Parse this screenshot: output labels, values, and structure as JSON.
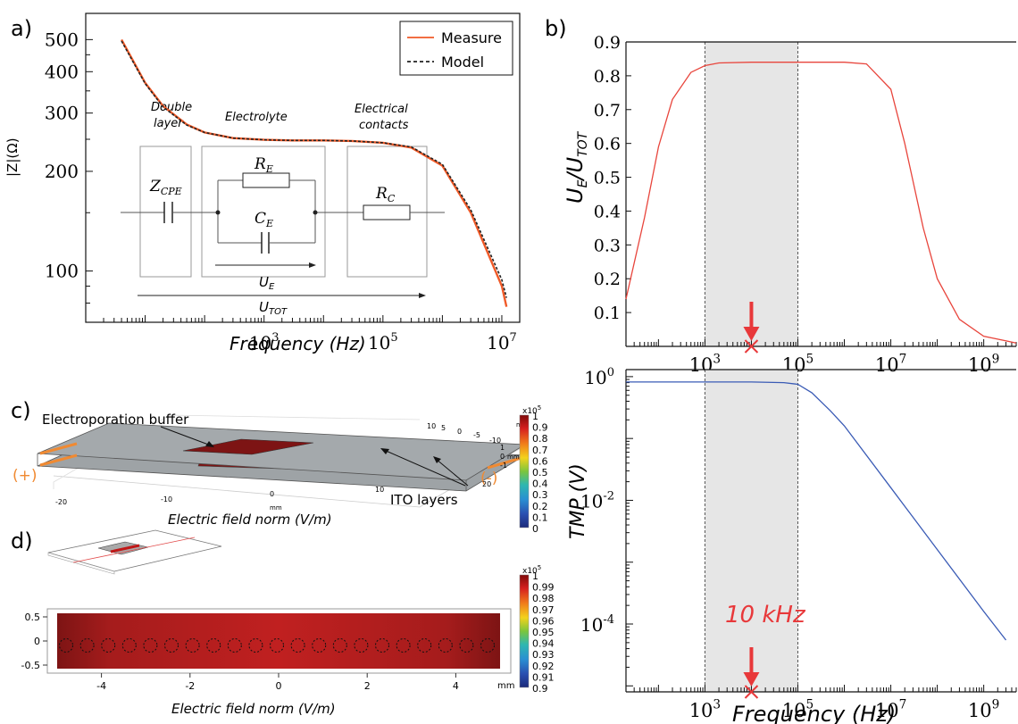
{
  "panels": {
    "a": "a)",
    "b": "b)",
    "c": "c)",
    "d": "d)"
  },
  "panel_a": {
    "legend": [
      "Measure",
      "Model"
    ],
    "region_labels": {
      "double_layer": [
        "Double",
        "layer"
      ],
      "electrolyte": "Electrolyte",
      "contacts": [
        "Electrical",
        "contacts"
      ]
    },
    "circuit": {
      "zcpe": "Z",
      "zcpe_sub": "CPE",
      "re": "R",
      "re_sub": "E",
      "ce": "C",
      "ce_sub": "E",
      "rc": "R",
      "rc_sub": "C",
      "ue": "U",
      "ue_sub": "E",
      "utot": "U",
      "utot_sub": "TOT"
    }
  },
  "panel_b": {
    "marker_label": "10 kHz"
  },
  "panel_c": {
    "label_buffer": "Electroporation buffer",
    "label_ito": "ITO layers",
    "plus": "(+)",
    "minus": "(-)",
    "xlabel": "Electric field norm (V/m)",
    "axis_ticks": [
      "-20",
      "-10",
      "0",
      "10",
      "20"
    ],
    "depth_ticks": [
      "10",
      "5",
      "0",
      "-5",
      "-10"
    ],
    "unit_mm": "mm",
    "colorbar": {
      "exp": "x10",
      "exp_sup": "5",
      "ticks": [
        "1",
        "0.9",
        "0.8",
        "0.7",
        "0.6",
        "0.5",
        "0.4",
        "0.3",
        "0.2",
        "0.1",
        "0"
      ]
    }
  },
  "panel_d": {
    "xlabel": "Electric field norm (V/m)",
    "xticks": [
      "-4",
      "-2",
      "0",
      "2",
      "4"
    ],
    "yticks": [
      "0.5",
      "0",
      "-0.5"
    ],
    "unit_mm": "mm",
    "colorbar": {
      "exp": "x10",
      "exp_sup": "5",
      "ticks": [
        "1",
        "0.99",
        "0.98",
        "0.97",
        "0.96",
        "0.95",
        "0.94",
        "0.93",
        "0.92",
        "0.91",
        "0.9"
      ]
    }
  },
  "chart_data": [
    {
      "type": "line",
      "panel": "a",
      "xlabel": "Frequency (Hz)",
      "ylabel": "|Z|(Ω)",
      "xscale": "log",
      "yscale": "log",
      "xlim": [
        1,
        20000000
      ],
      "ylim": [
        70,
        600
      ],
      "xtick_labels": [
        {
          "base": "10",
          "exp": "3"
        },
        {
          "base": "10",
          "exp": "5"
        },
        {
          "base": "10",
          "exp": "7"
        }
      ],
      "yticks": [
        100,
        200,
        300,
        400,
        500
      ],
      "legend_position": "top-right",
      "series": [
        {
          "name": "Measure",
          "color": "#f05a28",
          "x": [
            4,
            10,
            20,
            50,
            100,
            300,
            1000,
            3000,
            10000,
            30000,
            100000,
            300000,
            1000000,
            3000000,
            10000000,
            12000000
          ],
          "y": [
            500,
            370,
            315,
            277,
            262,
            252,
            249,
            248,
            248,
            247,
            244,
            236,
            208,
            150,
            90,
            78
          ]
        },
        {
          "name": "Model",
          "color": "#222222",
          "x": [
            4,
            10,
            20,
            50,
            100,
            300,
            1000,
            3000,
            10000,
            30000,
            100000,
            300000,
            1000000,
            3000000,
            10000000,
            12000000
          ],
          "y": [
            495,
            368,
            313,
            276,
            262,
            252,
            249,
            248,
            248,
            247,
            244,
            237,
            210,
            153,
            94,
            83
          ]
        }
      ]
    },
    {
      "type": "line",
      "panel": "b-top",
      "xlabel": "",
      "ylabel_parts": {
        "u": "U",
        "e": "E",
        "slash": "/U",
        "tot": "TOT"
      },
      "xscale": "log",
      "xlim": [
        20,
        5000000000
      ],
      "ylim": [
        0.0,
        0.9
      ],
      "yticks": [
        0.1,
        0.2,
        0.3,
        0.4,
        0.5,
        0.6,
        0.7,
        0.8,
        0.9
      ],
      "xtick_labels": [
        {
          "base": "10",
          "exp": "3"
        },
        {
          "base": "10",
          "exp": "5"
        },
        {
          "base": "10",
          "exp": "7"
        },
        {
          "base": "10",
          "exp": "9"
        }
      ],
      "shaded_range": [
        1000,
        100000
      ],
      "marker_x": 10000,
      "series": [
        {
          "color": "#e8453c",
          "x": [
            20,
            50,
            100,
            200,
            500,
            1000,
            2000,
            10000,
            100000,
            1000000,
            3000000,
            10000000,
            20000000,
            50000000,
            100000000,
            300000000,
            1000000000,
            5000000000
          ],
          "y": [
            0.14,
            0.38,
            0.59,
            0.73,
            0.81,
            0.83,
            0.838,
            0.84,
            0.84,
            0.84,
            0.835,
            0.76,
            0.6,
            0.35,
            0.2,
            0.08,
            0.03,
            0.01
          ]
        }
      ]
    },
    {
      "type": "line",
      "panel": "b-bottom",
      "xlabel": "Frequency (Hz)",
      "ylabel": "TMP (V)",
      "xscale": "log",
      "yscale": "log",
      "xlim": [
        20,
        5000000000
      ],
      "ylim": [
        8e-06,
        1.3
      ],
      "ytick_labels": [
        {
          "base": "10",
          "exp": "0"
        },
        {
          "base": "10",
          "exp": "-2"
        },
        {
          "base": "10",
          "exp": "-4"
        }
      ],
      "xtick_labels": [
        {
          "base": "10",
          "exp": "3"
        },
        {
          "base": "10",
          "exp": "5"
        },
        {
          "base": "10",
          "exp": "7"
        },
        {
          "base": "10",
          "exp": "9"
        }
      ],
      "shaded_range": [
        1000,
        100000
      ],
      "marker_x": 10000,
      "series": [
        {
          "color": "#3a5bb5",
          "x": [
            20,
            1000,
            10000,
            50000,
            100000,
            200000,
            500000,
            1000000,
            10000000,
            100000000,
            1000000000,
            3000000000
          ],
          "y": [
            0.82,
            0.82,
            0.82,
            0.8,
            0.75,
            0.55,
            0.28,
            0.16,
            0.016,
            0.0016,
            0.00016,
            5.5e-05
          ]
        }
      ]
    }
  ]
}
